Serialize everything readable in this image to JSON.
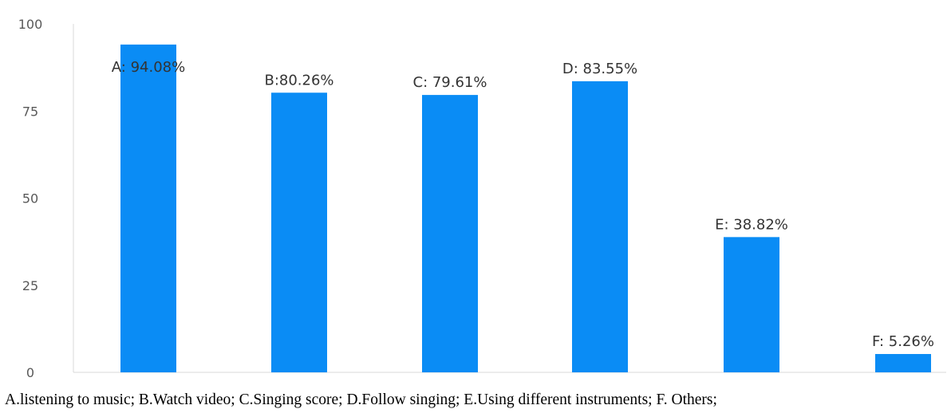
{
  "chart_data": {
    "type": "bar",
    "categories": [
      "A",
      "B",
      "C",
      "D",
      "E",
      "F"
    ],
    "values": [
      94.08,
      80.26,
      79.61,
      83.55,
      38.82,
      5.26
    ],
    "data_labels": [
      "A: 94.08%",
      "B:80.26%",
      "C: 79.61%",
      "D: 83.55%",
      "E: 38.82%",
      "F: 5.26%"
    ],
    "ylim": [
      0,
      100
    ],
    "yticks": [
      0,
      25,
      50,
      75,
      100
    ],
    "grid": false,
    "bar_color": "#0A8CF5",
    "caption": "A.listening to music; B.Watch video; C.Singing score; D.Follow singing; E.Using different instruments; F. Others;"
  }
}
